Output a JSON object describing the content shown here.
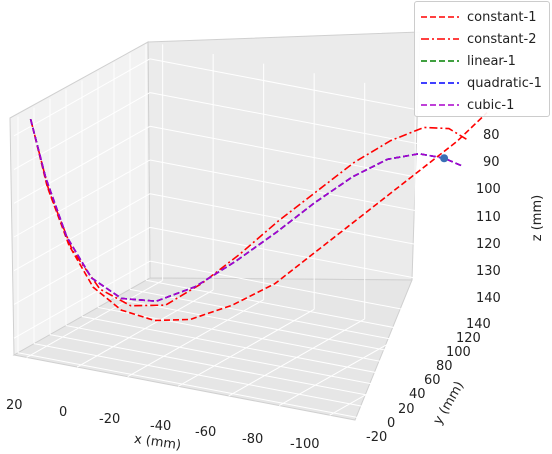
{
  "chart_data": {
    "type": "line",
    "projection": "3d",
    "xlabel": "x (mm)",
    "ylabel": "y (mm)",
    "zlabel": "z (mm)",
    "x_ticks": [
      20,
      0,
      -20,
      -40,
      -60,
      -80,
      -100
    ],
    "y_ticks": [
      -20,
      0,
      20,
      40,
      60,
      80,
      100,
      120,
      140
    ],
    "z_ticks": [
      80,
      90,
      100,
      110,
      120,
      130,
      140
    ],
    "xlim": [
      25,
      -110
    ],
    "ylim": [
      -25,
      145
    ],
    "zlim": [
      145,
      75
    ],
    "grid": true,
    "legend_position": "top-right",
    "series": [
      {
        "name": "constant-1",
        "color": "#ff0000",
        "style": "dashed",
        "points": [
          [
            20,
            -20,
            75
          ],
          [
            15,
            -15,
            95
          ],
          [
            8,
            -10,
            112
          ],
          [
            0,
            -5,
            124
          ],
          [
            -8,
            5,
            131
          ],
          [
            -18,
            15,
            134
          ],
          [
            -28,
            28,
            134
          ],
          [
            -40,
            42,
            130
          ],
          [
            -52,
            58,
            124
          ],
          [
            -62,
            72,
            116
          ],
          [
            -72,
            86,
            108
          ],
          [
            -82,
            100,
            100
          ],
          [
            -92,
            114,
            92
          ],
          [
            -102,
            128,
            84
          ],
          [
            -110,
            140,
            76
          ]
        ]
      },
      {
        "name": "constant-2",
        "color": "#ff0000",
        "style": "dashdot",
        "points": [
          [
            20,
            -20,
            75
          ],
          [
            14,
            -16,
            96
          ],
          [
            6,
            -12,
            113
          ],
          [
            -3,
            -6,
            124
          ],
          [
            -12,
            4,
            129
          ],
          [
            -22,
            16,
            129
          ],
          [
            -32,
            30,
            123
          ],
          [
            -42,
            46,
            115
          ],
          [
            -52,
            62,
            106
          ],
          [
            -62,
            78,
            98
          ],
          [
            -72,
            94,
            90
          ],
          [
            -82,
            108,
            84
          ],
          [
            -92,
            118,
            80
          ],
          [
            -100,
            124,
            80
          ],
          [
            -106,
            128,
            83
          ]
        ]
      },
      {
        "name": "linear-1",
        "color": "#008000",
        "style": "dashed",
        "points": [
          [
            20,
            -20,
            75
          ],
          [
            15,
            -17,
            92
          ],
          [
            8,
            -13,
            109
          ],
          [
            0,
            -7,
            121
          ],
          [
            -9,
            2,
            127
          ],
          [
            -19,
            14,
            128
          ],
          [
            -30,
            28,
            124
          ],
          [
            -41,
            44,
            117
          ],
          [
            -52,
            60,
            109
          ],
          [
            -62,
            76,
            101
          ],
          [
            -72,
            92,
            94
          ],
          [
            -82,
            104,
            89
          ],
          [
            -92,
            112,
            87
          ],
          [
            -100,
            118,
            88
          ],
          [
            -106,
            122,
            90
          ]
        ]
      },
      {
        "name": "quadratic-1",
        "color": "#0000ff",
        "style": "dashed",
        "points": [
          [
            20,
            -20,
            75
          ],
          [
            15,
            -17,
            92
          ],
          [
            8,
            -13,
            109
          ],
          [
            0,
            -7,
            121
          ],
          [
            -9,
            2,
            127
          ],
          [
            -19,
            14,
            128
          ],
          [
            -30,
            28,
            124
          ],
          [
            -41,
            44,
            117
          ],
          [
            -52,
            60,
            109
          ],
          [
            -62,
            76,
            101
          ],
          [
            -72,
            92,
            94
          ],
          [
            -82,
            104,
            89
          ],
          [
            -92,
            112,
            87
          ],
          [
            -100,
            118,
            88
          ],
          [
            -106,
            122,
            90
          ]
        ]
      },
      {
        "name": "cubic-1",
        "color": "#aa00cc",
        "style": "dashed",
        "points": [
          [
            20,
            -20,
            75
          ],
          [
            15,
            -17,
            92
          ],
          [
            8,
            -13,
            109
          ],
          [
            0,
            -7,
            121
          ],
          [
            -9,
            2,
            127
          ],
          [
            -19,
            14,
            128
          ],
          [
            -30,
            28,
            124
          ],
          [
            -41,
            44,
            117
          ],
          [
            -52,
            60,
            109
          ],
          [
            -62,
            76,
            101
          ],
          [
            -72,
            92,
            94
          ],
          [
            -82,
            104,
            89
          ],
          [
            -92,
            112,
            87
          ],
          [
            -100,
            118,
            88
          ],
          [
            -106,
            122,
            90
          ]
        ]
      }
    ],
    "marker": {
      "point": [
        -100,
        118,
        88
      ],
      "color": "#3a6fb5"
    }
  }
}
